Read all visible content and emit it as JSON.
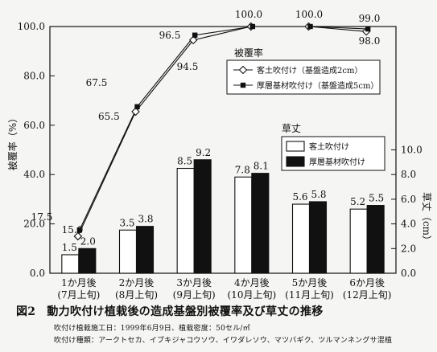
{
  "chart_data": {
    "type": "bar+line",
    "categories": [
      "1か月後\n(7月上旬)",
      "2か月後\n(8月上旬)",
      "3か月後\n(9月上旬)",
      "4か月後\n(10月上旬)",
      "5か月後\n(11月上旬)",
      "6か月後\n(12月上旬)"
    ],
    "left_axis": {
      "label": "被覆率（%）",
      "ylim": [
        0,
        100
      ],
      "ticks": [
        "0.0",
        "20.0",
        "40.0",
        "60.0",
        "80.0",
        "100.0"
      ]
    },
    "right_axis": {
      "label": "草丈（cm）",
      "ylim": [
        0,
        20
      ],
      "ticks": [
        "0.0",
        "2.0",
        "4.0",
        "6.0",
        "8.0",
        "10.0"
      ]
    },
    "line_legend_title": "被覆率",
    "bar_legend_title": "草丈",
    "line_series": [
      {
        "name": "客土吹付け（基盤造成2cm）",
        "marker": "diamond-open",
        "values": [
          15.0,
          65.5,
          94.5,
          100.0,
          100.0,
          98.0
        ],
        "labels": [
          "15.0",
          "65.5",
          "94.5",
          "100.0",
          "100.0",
          "98.0"
        ]
      },
      {
        "name": "厚層基材吹付け（基盤造成5cm）",
        "marker": "square-filled",
        "values": [
          17.5,
          67.5,
          96.5,
          100.0,
          100.0,
          99.0
        ],
        "labels": [
          "17.5",
          "67.5",
          "96.5",
          "100.0",
          "100.0",
          "99.0"
        ]
      }
    ],
    "bar_series": [
      {
        "name": "客土吹付け",
        "color": "#ffffff",
        "values": [
          1.5,
          3.5,
          8.5,
          7.8,
          5.6,
          5.2
        ],
        "labels": [
          "1.5",
          "3.5",
          "8.5",
          "7.8",
          "5.6",
          "5.2"
        ]
      },
      {
        "name": "厚層基材吹付け",
        "color": "#111111",
        "values": [
          2.0,
          3.8,
          9.2,
          8.1,
          5.8,
          5.5
        ],
        "labels": [
          "2.0",
          "3.8",
          "9.2",
          "8.1",
          "5.8",
          "5.5"
        ]
      }
    ]
  },
  "caption": {
    "figure_no": "図2",
    "title": "動力吹付け植栽後の造成基盤別被覆率及び草丈の推移"
  },
  "notes": [
    "吹付け植栽施工日：1999年6月9日、植栽密度：50セル/㎡",
    "吹付け種類：アークトセカ、イブキジャコウソウ、イワダレソウ、マツバギク、ツルマンネングサ混植"
  ]
}
